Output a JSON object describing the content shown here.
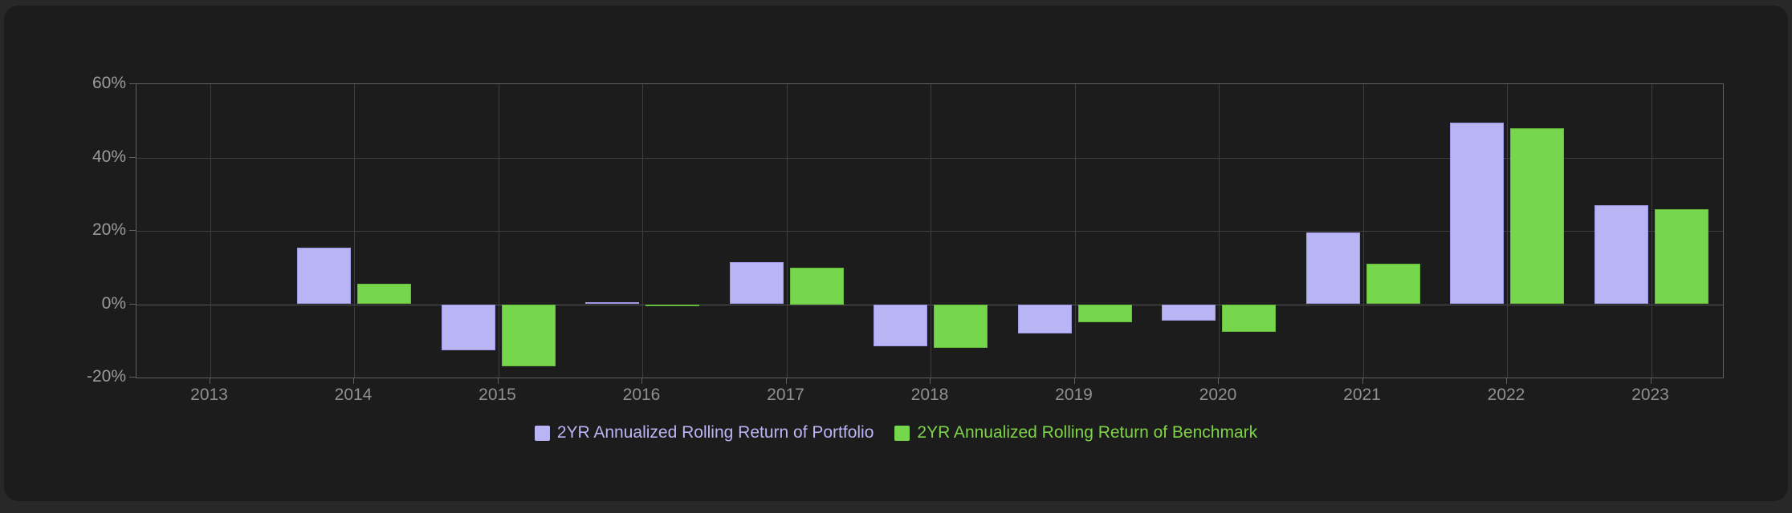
{
  "chart_data": {
    "type": "bar",
    "title": "",
    "categories": [
      "2013",
      "2014",
      "2015",
      "2016",
      "2017",
      "2018",
      "2019",
      "2020",
      "2021",
      "2022",
      "2023"
    ],
    "series": [
      {
        "name": "2YR Annualized Rolling Return of Portfolio",
        "key": "portfolio",
        "color": "#b9b4f3",
        "border_color": "#9f99e6",
        "values": [
          null,
          15.5,
          -12.5,
          0.5,
          11.5,
          -11.5,
          -8,
          -4.5,
          19.5,
          49.5,
          27
        ]
      },
      {
        "name": "2YR Annualized Rolling Return of Benchmark",
        "key": "benchmark",
        "color": "#77d74c",
        "border_color": "#66bb3d",
        "values": [
          null,
          5.5,
          -17,
          -0.3,
          10,
          -12,
          -5,
          -7.5,
          11,
          48,
          26
        ]
      }
    ],
    "xlabel": "",
    "ylabel": "",
    "ylim": [
      -20,
      60
    ],
    "y_ticks": [
      {
        "value": 60,
        "label": "60%"
      },
      {
        "value": 40,
        "label": "40%"
      },
      {
        "value": 20,
        "label": "20%"
      },
      {
        "value": 0,
        "label": "0%"
      },
      {
        "value": -20,
        "label": "-20%"
      }
    ],
    "grid": true,
    "legend_position": "bottom"
  },
  "colors": {
    "outer_background": "#282828",
    "panel_background": "#1c1c1c",
    "plot_border": "#606060",
    "gridline": "#3e3e3e",
    "zero_line": "#565656",
    "y_tick_label": "#9c9c9c",
    "x_tick_label": "#909090",
    "portfolio_bar": "#b9b4f3",
    "benchmark_bar": "#77d74c",
    "legend_portfolio_text": "#bab5f4",
    "legend_benchmark_text": "#7ed348"
  }
}
